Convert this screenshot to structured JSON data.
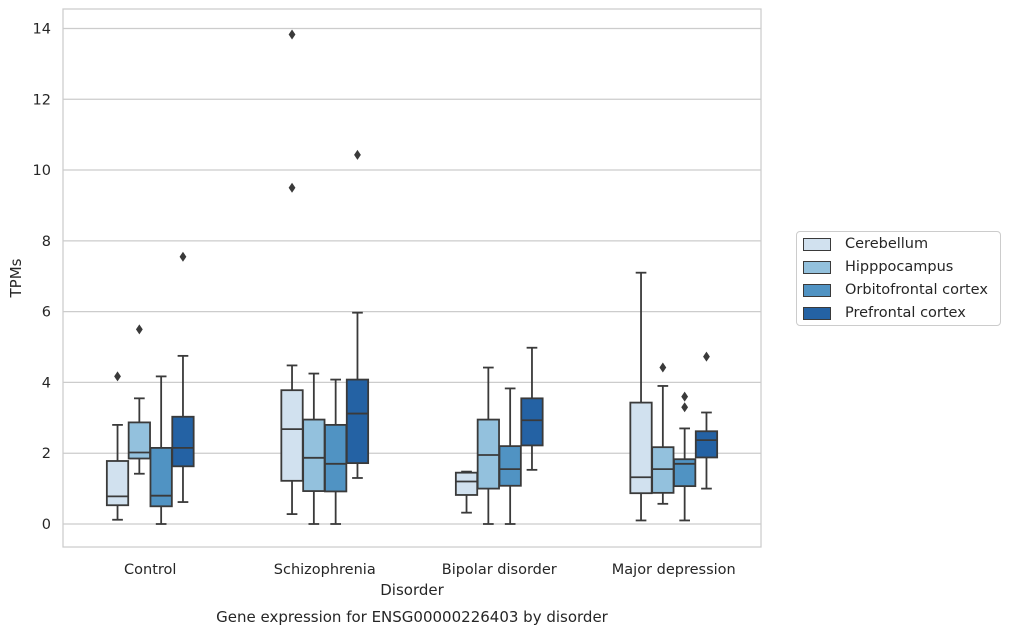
{
  "chart_data": {
    "type": "box",
    "title": "Gene expression for ENSG00000226403 by disorder",
    "xlabel": "Disorder",
    "ylabel": "TPMs",
    "ylim": [
      -0.65,
      14.55
    ],
    "yticks": [
      "0",
      "2",
      "4",
      "6",
      "8",
      "10",
      "12",
      "14"
    ],
    "grid": "horizontal",
    "legend_placement": "outside-right",
    "categories": [
      "Control",
      "Schizophrenia",
      "Bipolar disorder",
      "Major depression"
    ],
    "series": [
      {
        "name": "Cerebellum",
        "color": "#d1e1ef",
        "boxes": [
          {
            "whislo": 0.12,
            "q1": 0.53,
            "med": 0.78,
            "q3": 1.78,
            "whishi": 2.8,
            "fliers": [
              4.17
            ]
          },
          {
            "whislo": 0.28,
            "q1": 1.22,
            "med": 2.68,
            "q3": 3.78,
            "whishi": 4.48,
            "fliers": [
              9.5,
              13.83
            ]
          },
          {
            "whislo": 0.32,
            "q1": 0.82,
            "med": 1.2,
            "q3": 1.45,
            "whishi": 1.48,
            "fliers": []
          },
          {
            "whislo": 0.1,
            "q1": 0.87,
            "med": 1.32,
            "q3": 3.43,
            "whishi": 7.1,
            "fliers": []
          }
        ]
      },
      {
        "name": "Hipppocampus",
        "color": "#93c1dd",
        "boxes": [
          {
            "whislo": 1.42,
            "q1": 1.85,
            "med": 2.02,
            "q3": 2.87,
            "whishi": 3.55,
            "fliers": [
              5.5
            ]
          },
          {
            "whislo": 0.0,
            "q1": 0.93,
            "med": 1.87,
            "q3": 2.95,
            "whishi": 4.25,
            "fliers": []
          },
          {
            "whislo": 0.0,
            "q1": 1.0,
            "med": 1.95,
            "q3": 2.95,
            "whishi": 4.42,
            "fliers": []
          },
          {
            "whislo": 0.57,
            "q1": 0.88,
            "med": 1.55,
            "q3": 2.17,
            "whishi": 3.9,
            "fliers": [
              4.42
            ]
          }
        ]
      },
      {
        "name": "Orbitofrontal cortex",
        "color": "#5093c3",
        "boxes": [
          {
            "whislo": 0.0,
            "q1": 0.5,
            "med": 0.8,
            "q3": 2.15,
            "whishi": 4.17,
            "fliers": []
          },
          {
            "whislo": 0.0,
            "q1": 0.92,
            "med": 1.7,
            "q3": 2.8,
            "whishi": 4.08,
            "fliers": []
          },
          {
            "whislo": 0.0,
            "q1": 1.08,
            "med": 1.55,
            "q3": 2.2,
            "whishi": 3.83,
            "fliers": []
          },
          {
            "whislo": 0.1,
            "q1": 1.07,
            "med": 1.7,
            "q3": 1.83,
            "whishi": 2.7,
            "fliers": [
              3.3,
              3.6
            ]
          }
        ]
      },
      {
        "name": "Prefrontal cortex",
        "color": "#2462a4",
        "boxes": [
          {
            "whislo": 0.62,
            "q1": 1.63,
            "med": 2.15,
            "q3": 3.03,
            "whishi": 4.75,
            "fliers": [
              7.55
            ]
          },
          {
            "whislo": 1.3,
            "q1": 1.72,
            "med": 3.12,
            "q3": 4.08,
            "whishi": 5.97,
            "fliers": [
              10.43
            ]
          },
          {
            "whislo": 1.53,
            "q1": 2.22,
            "med": 2.93,
            "q3": 3.55,
            "whishi": 4.98,
            "fliers": []
          },
          {
            "whislo": 1.0,
            "q1": 1.88,
            "med": 2.37,
            "q3": 2.62,
            "whishi": 3.15,
            "fliers": [
              4.73
            ]
          }
        ]
      }
    ]
  }
}
